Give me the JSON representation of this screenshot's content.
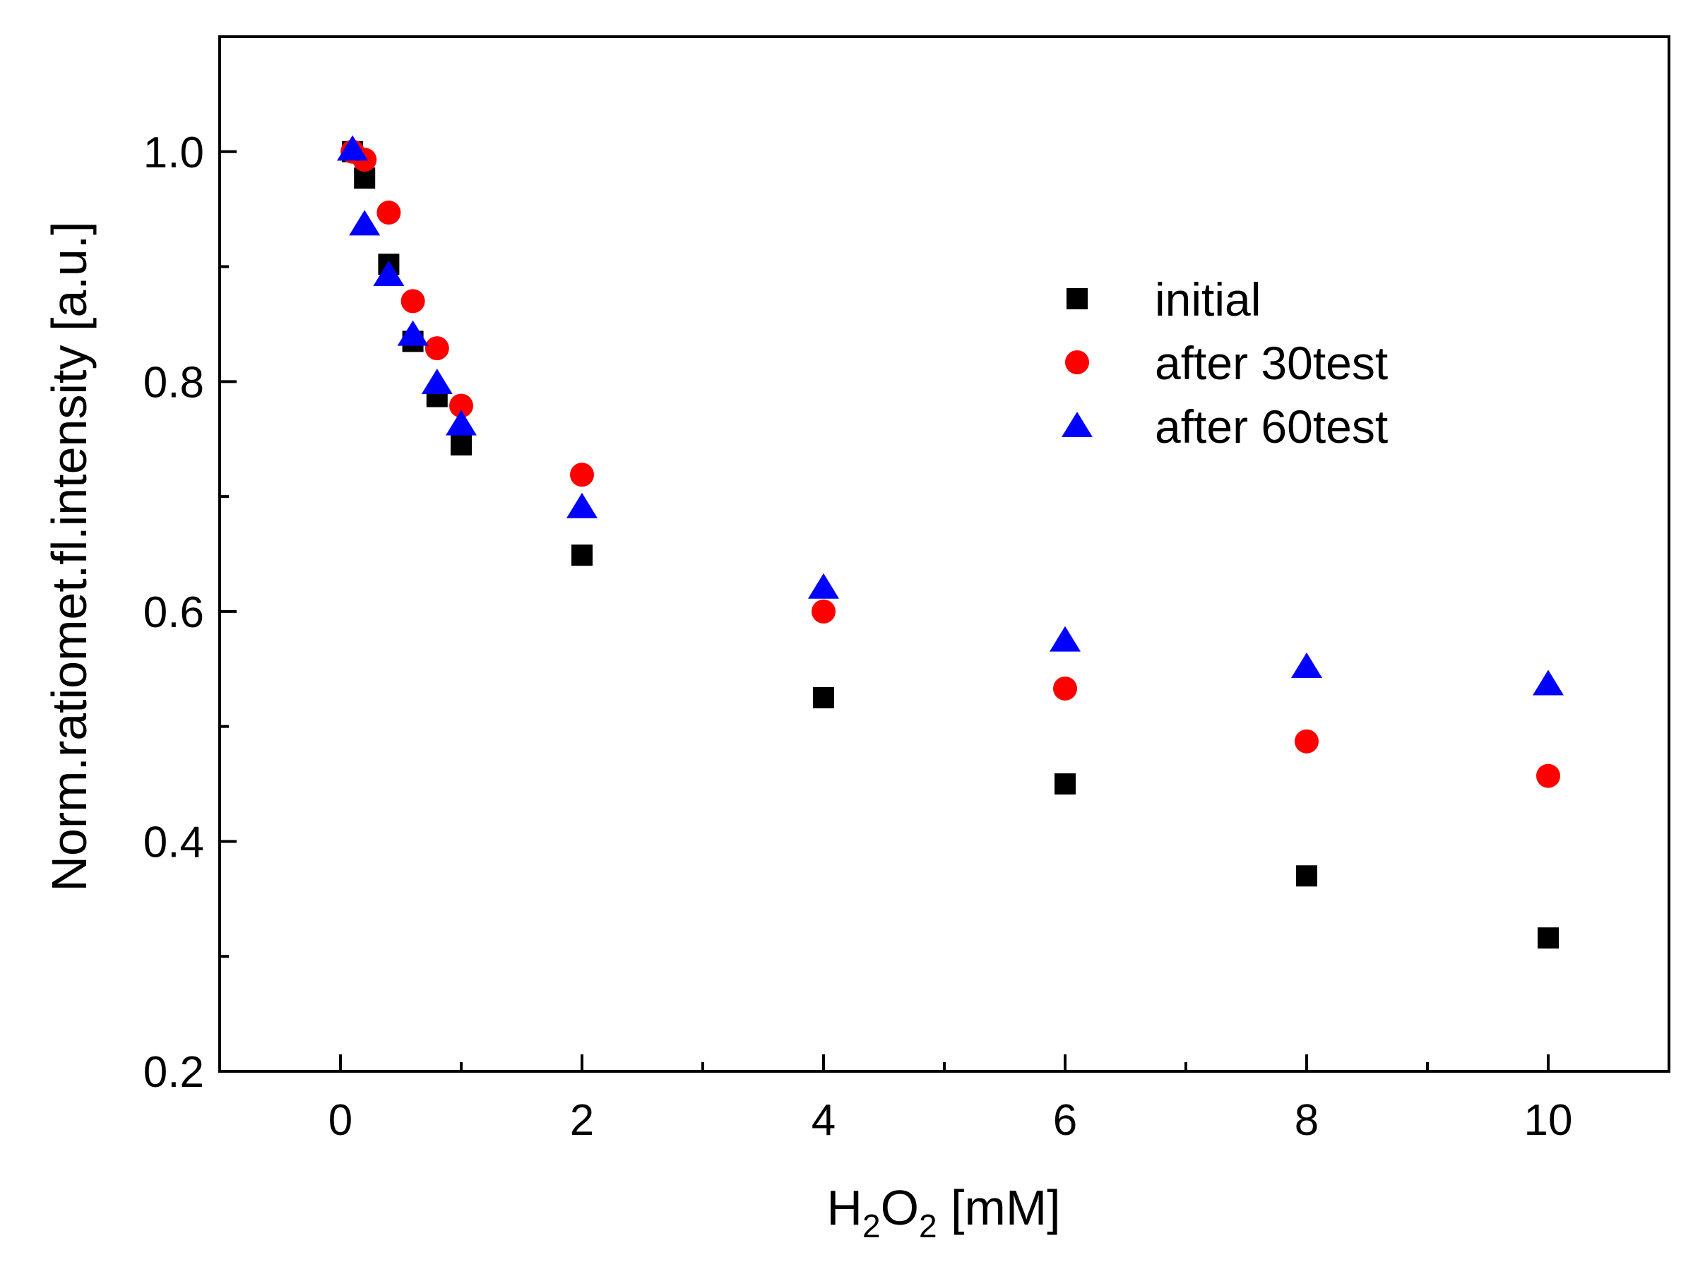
{
  "chart_data": {
    "type": "scatter",
    "xlabel": {
      "base": "H",
      "sub1": "2",
      "mid": "O",
      "sub2": "2",
      "unit": " [mM]"
    },
    "ylabel": "Norm.ratiomet.fl.intensity [a.u.]",
    "xlim": [
      -1,
      11
    ],
    "ylim": [
      0.2,
      1.1
    ],
    "x_ticks": [
      0,
      2,
      4,
      6,
      8,
      10
    ],
    "x_minor_ticks": [
      1,
      3,
      5,
      7,
      9
    ],
    "y_ticks": [
      0.2,
      0.4,
      0.6,
      0.8,
      1.0
    ],
    "y_tick_labels": [
      "0.2",
      "0.4",
      "0.6",
      "0.8",
      "1.0"
    ],
    "y_minor_ticks": [
      0.3,
      0.5,
      0.7,
      0.9
    ],
    "legend_position": "top-right",
    "series": [
      {
        "name": "initial",
        "marker": "square",
        "color": "#000000",
        "x": [
          0.1,
          0.2,
          0.4,
          0.6,
          0.8,
          1,
          2,
          4,
          6,
          8,
          10
        ],
        "y": [
          1.0,
          0.977,
          0.902,
          0.835,
          0.787,
          0.745,
          0.649,
          0.525,
          0.45,
          0.37,
          0.316
        ]
      },
      {
        "name": "after 30test",
        "marker": "circle",
        "color": "#ff0000",
        "x": [
          0.1,
          0.2,
          0.4,
          0.6,
          0.8,
          1,
          2,
          4,
          6,
          8,
          10
        ],
        "y": [
          1.0,
          0.993,
          0.947,
          0.87,
          0.829,
          0.779,
          0.719,
          0.6,
          0.533,
          0.487,
          0.457
        ]
      },
      {
        "name": "after 60test",
        "marker": "triangle",
        "color": "#0000ff",
        "x": [
          0.1,
          0.2,
          0.4,
          0.6,
          0.8,
          1,
          2,
          4,
          6,
          8,
          10
        ],
        "y": [
          1.002,
          0.937,
          0.893,
          0.841,
          0.799,
          0.763,
          0.691,
          0.621,
          0.575,
          0.552,
          0.537
        ]
      }
    ]
  }
}
